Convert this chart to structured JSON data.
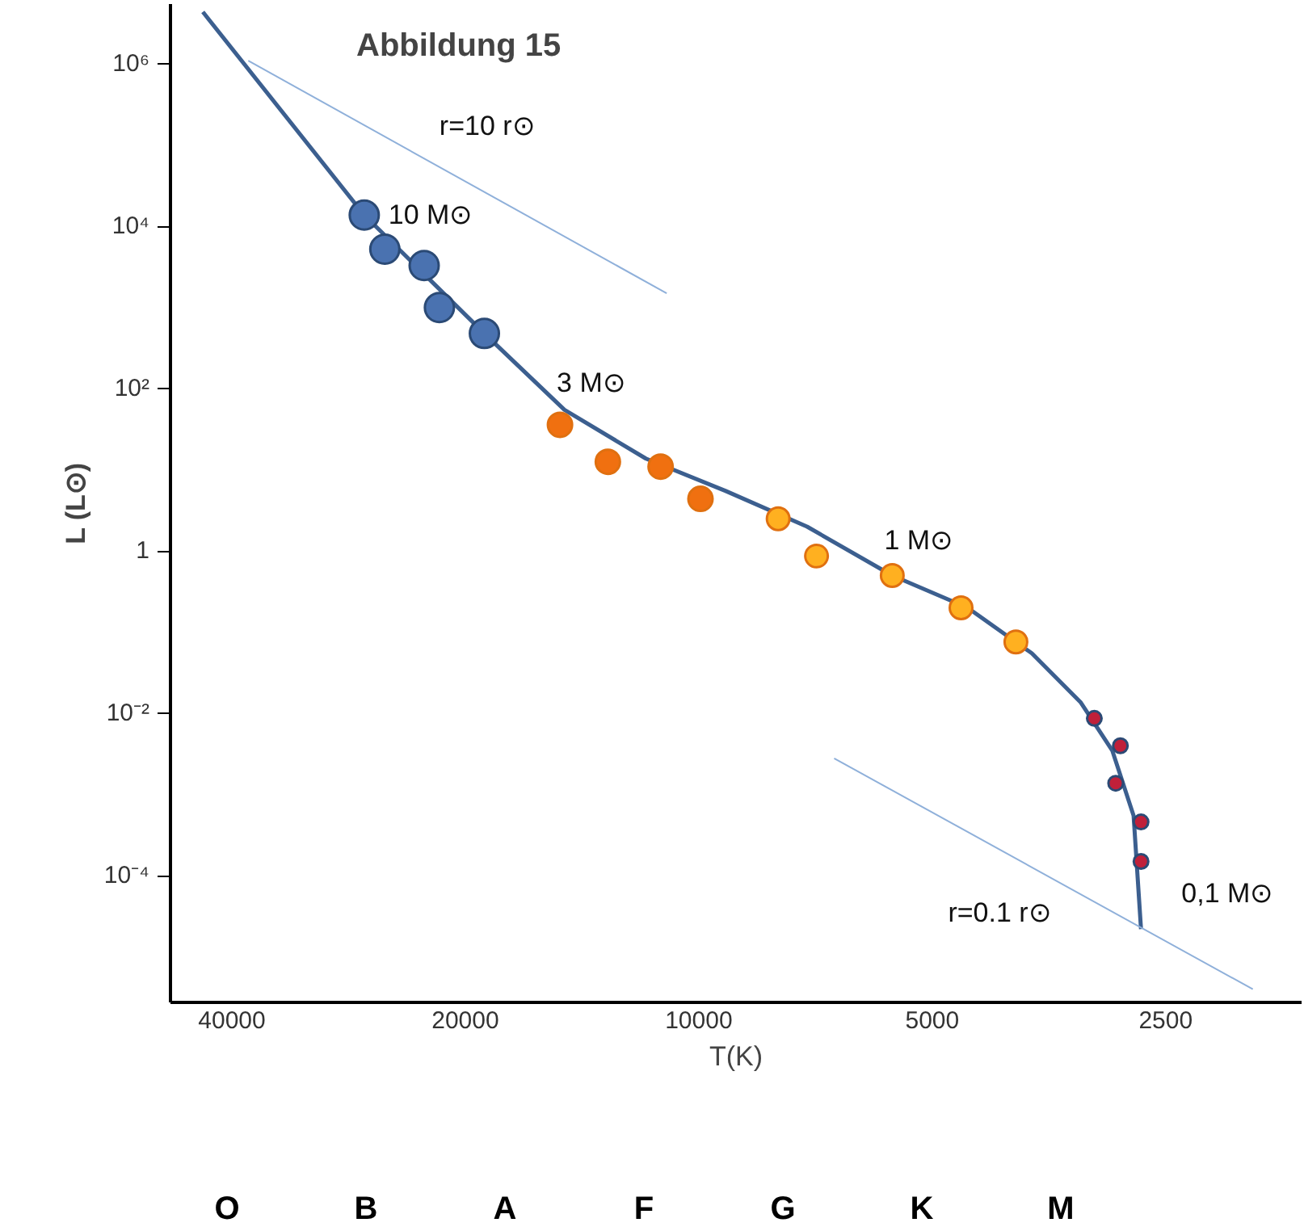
{
  "chart_data": {
    "type": "scatter",
    "title": "Abbildung 15",
    "xlabel": "T(K)",
    "ylabel": "L (L⊙)",
    "log": "xy",
    "xlim": [
      48000,
      1670
    ],
    "ylim": [
      2.75e-06,
      5500000.0
    ],
    "xticks": [
      40000,
      20000,
      10000,
      5000,
      2500
    ],
    "yticks": [
      {
        "value": 1000000,
        "label": "10⁶"
      },
      {
        "value": 10000,
        "label": "10⁴"
      },
      {
        "value": 100,
        "label": "10²"
      },
      1,
      {
        "value": 0.01,
        "label": "10⁻²"
      },
      {
        "value": 0.0001,
        "label": "10⁻⁴"
      }
    ],
    "series": [
      {
        "type": "line",
        "color": "#3c5f8f",
        "x": [
          43600,
          27000,
          18900,
          14900,
          11700,
          9230,
          7250,
          5630,
          4500,
          3720,
          3220,
          2930,
          2750,
          2690
        ],
        "values": [
          4400000,
          13800,
          480,
          55,
          13.8,
          5.5,
          2.0,
          0.5,
          0.2,
          0.055,
          0.0138,
          0.0035,
          0.00055,
          2.2e-05
        ]
      },
      {
        "type": "line",
        "color": "#8fb0da",
        "x": [
          38100,
          11000
        ],
        "values": [
          1100000,
          1500
        ]
      },
      {
        "type": "line",
        "color": "#8fb0da",
        "x": [
          6690,
          1930
        ],
        "values": [
          0.0028,
          4e-06
        ]
      },
      {
        "marker": "circle",
        "color": "#4a72b0",
        "x": [
          27000,
          25400,
          22600,
          21600,
          18900
        ],
        "values": [
          13800,
          5250,
          3300,
          1000,
          480
        ]
      },
      {
        "marker": "circle",
        "color": "#f07010",
        "x": [
          15100,
          13100,
          11200,
          9950
        ],
        "values": [
          36,
          12.6,
          11,
          4.4
        ]
      },
      {
        "marker": "circle",
        "color": "#ffb020",
        "x": [
          7900,
          7050,
          5630,
          4590,
          3900
        ],
        "values": [
          2.5,
          0.87,
          0.5,
          0.2,
          0.076
        ]
      },
      {
        "marker": "circle",
        "color": "#c0203a",
        "x": [
          3090,
          2860,
          2900,
          2690,
          2690
        ],
        "values": [
          0.0087,
          0.004,
          0.00138,
          0.00046,
          0.00015
        ]
      }
    ],
    "annotations": [
      {
        "text": "10 M⊙",
        "x": 27000,
        "y": 13800
      },
      {
        "text": "3 M⊙",
        "x": 15100,
        "y": 36
      },
      {
        "text": "1 M⊙",
        "x": 5630,
        "y": 0.5
      },
      {
        "text": "0,1 M⊙",
        "x": 2690,
        "y": 2.2e-05
      },
      {
        "text": "r=10 r⊙",
        "x": 21600,
        "y": 55000
      },
      {
        "text": "r=0.1 r⊙",
        "x": 3900,
        "y": 0.00016
      },
      "O",
      "B",
      "A",
      "F",
      "G",
      "K",
      "M"
    ]
  }
}
